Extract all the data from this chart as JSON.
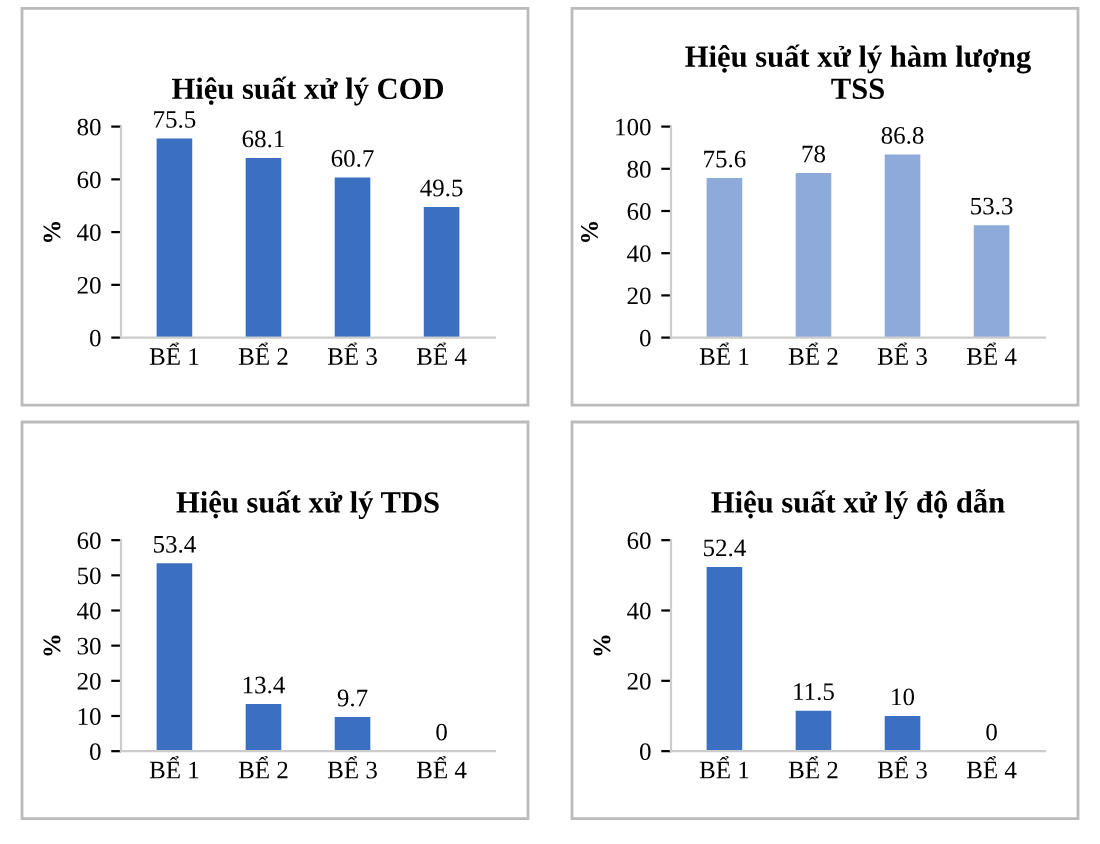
{
  "chart_data": [
    {
      "type": "bar",
      "title": "Hiệu suất xử lý COD",
      "ylabel": "%",
      "categories": [
        "BỂ 1",
        "BỂ 2",
        "BỂ 3",
        "BỂ 4"
      ],
      "values": [
        75.5,
        68.1,
        60.7,
        49.5
      ],
      "color": "#3b6fc1",
      "ylim": [
        0,
        80
      ],
      "yticks": [
        0,
        20,
        40,
        60,
        80
      ],
      "data_labels": true
    },
    {
      "type": "bar",
      "title": "Hiệu suất xử lý hàm lượng\nTSS",
      "ylabel": "%",
      "categories": [
        "BỂ 1",
        "BỂ 2",
        "BỂ 3",
        "BỂ 4"
      ],
      "values": [
        75.6,
        78,
        86.8,
        53.3
      ],
      "color": "#8eaadb",
      "ylim": [
        0,
        100
      ],
      "yticks": [
        0,
        20,
        40,
        60,
        80,
        100
      ],
      "data_labels": true
    },
    {
      "type": "bar",
      "title": "Hiệu suất xử lý TDS",
      "ylabel": "%",
      "categories": [
        "BỂ 1",
        "BỂ 2",
        "BỂ 3",
        "BỂ 4"
      ],
      "values": [
        53.4,
        13.4,
        9.7,
        0
      ],
      "color": "#3b6fc1",
      "ylim": [
        0,
        60
      ],
      "yticks": [
        0,
        10,
        20,
        30,
        40,
        50,
        60
      ],
      "data_labels": true
    },
    {
      "type": "bar",
      "title": "Hiệu suất xử lý độ dẫn",
      "ylabel": "%",
      "categories": [
        "BỂ 1",
        "BỂ 2",
        "BỂ 3",
        "BỂ 4"
      ],
      "values": [
        52.4,
        11.5,
        10,
        0
      ],
      "color": "#3b6fc1",
      "ylim": [
        0,
        60
      ],
      "yticks": [
        0,
        20,
        40,
        60
      ],
      "data_labels": true
    }
  ]
}
